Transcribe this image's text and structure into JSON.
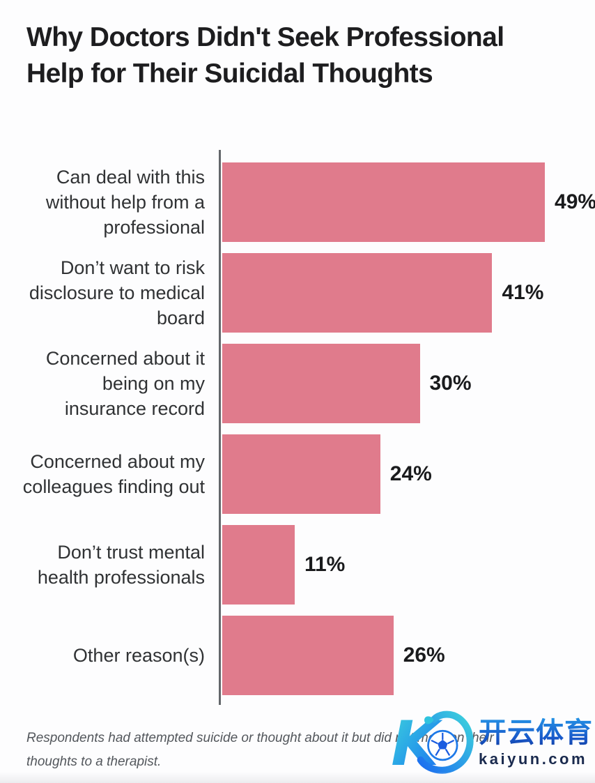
{
  "chart_data": {
    "type": "bar",
    "orientation": "horizontal",
    "title": "Why Doctors Didn't Seek Professional Help for Their Suicidal Thoughts",
    "title_lines": [
      "Why Doctors Didn't Seek Professional",
      "Help for Their Suicidal Thoughts"
    ],
    "xlabel": "",
    "ylabel": "",
    "unit": "%",
    "xlim": [
      0,
      52
    ],
    "grid": false,
    "legend": false,
    "bar_color": "#e07b8c",
    "axis_color": "#63676b",
    "categories": [
      "Can deal with this without help from a professional",
      "Don’t want to risk disclosure to medical board",
      "Concerned about it being on my insurance record",
      "Concerned about my colleagues finding out",
      "Don’t trust mental health professionals",
      "Other reason(s)"
    ],
    "values": [
      49,
      41,
      30,
      24,
      11,
      26
    ],
    "bars": [
      {
        "label_lines": [
          "Can deal with this",
          "without help from a",
          "professional"
        ],
        "value": 49,
        "value_label": "49%"
      },
      {
        "label_lines": [
          "Don’t want to risk",
          "disclosure to medical",
          "board"
        ],
        "value": 41,
        "value_label": "41%"
      },
      {
        "label_lines": [
          "Concerned about it",
          "being on my",
          "insurance record"
        ],
        "value": 30,
        "value_label": "30%"
      },
      {
        "label_lines": [
          "Concerned about my",
          "colleagues finding out"
        ],
        "value": 24,
        "value_label": "24%"
      },
      {
        "label_lines": [
          "Don’t trust mental",
          "health professionals"
        ],
        "value": 11,
        "value_label": "11%"
      },
      {
        "label_lines": [
          "Other reason(s)"
        ],
        "value": 26,
        "value_label": "26%"
      }
    ],
    "footnote_lines": [
      "Respondents had attempted suicide or thought about it but did not mention their",
      "thoughts to a therapist."
    ]
  },
  "watermark": {
    "brand_cn": "开云体育",
    "domain": "kaiyun.com",
    "logo": "kaiyun-k-soccer-logo",
    "logo_gradient_start": "#3ed4dc",
    "logo_gradient_end": "#1b6cf0",
    "domain_color": "#1a2a4e"
  }
}
